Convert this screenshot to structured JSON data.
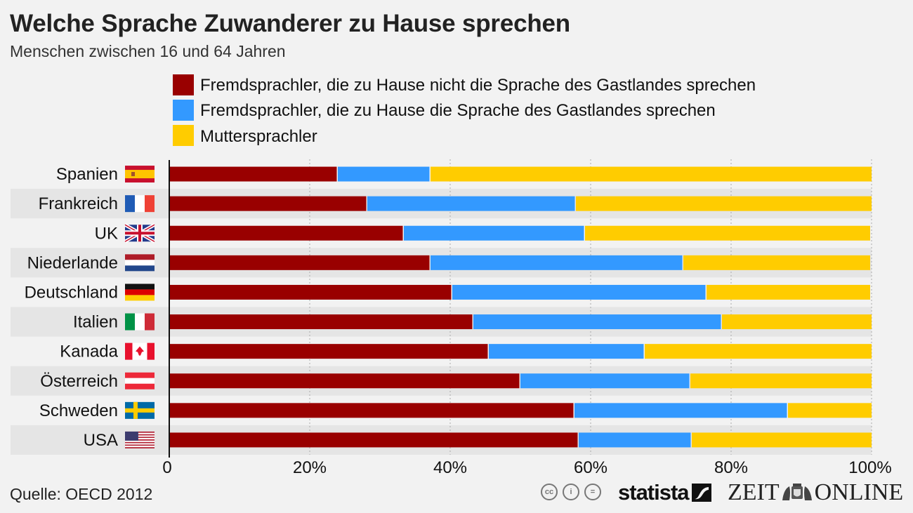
{
  "header": {
    "title": "Welche Sprache Zuwanderer zu Hause sprechen",
    "subtitle": "Menschen zwischen 16 und 64 Jahren"
  },
  "footer": {
    "source": "Quelle: OECD 2012",
    "license_icons": [
      "cc-icon",
      "attribution-icon",
      "no-derivatives-icon"
    ],
    "license_labels": [
      "cc",
      "i",
      "="
    ],
    "statista": "statista",
    "zeit_left": "ZEIT",
    "zeit_right": "ONLINE"
  },
  "chart_data": {
    "type": "bar",
    "orientation": "horizontal",
    "stacked": true,
    "title": "Welche Sprache Zuwanderer zu Hause sprechen",
    "subtitle": "Menschen zwischen 16 und 64 Jahren",
    "xlabel": "",
    "ylabel": "",
    "xlim": [
      0,
      100
    ],
    "x_ticks": [
      0,
      20,
      40,
      60,
      80,
      100
    ],
    "x_tick_labels": [
      "0",
      "20%",
      "40%",
      "60%",
      "80%",
      "100%"
    ],
    "grid": "vertical dotted",
    "legend_position": "top",
    "categories": [
      "Spanien",
      "Frankreich",
      "UK",
      "Niederlande",
      "Deutschland",
      "Italien",
      "Kanada",
      "Österreich",
      "Schweden",
      "USA"
    ],
    "flags": [
      "es-flag-icon",
      "fr-flag-icon",
      "uk-flag-icon",
      "nl-flag-icon",
      "de-flag-icon",
      "it-flag-icon",
      "ca-flag-icon",
      "at-flag-icon",
      "se-flag-icon",
      "us-flag-icon"
    ],
    "series": [
      {
        "name": "Fremdsprachler, die zu Hause nicht die Sprache des Gastlandes sprechen",
        "color": "#990000",
        "values": [
          24.0,
          28.2,
          33.4,
          37.2,
          40.3,
          43.3,
          45.5,
          50.0,
          57.7,
          58.3
        ]
      },
      {
        "name": "Fremdsprachler, die zu Hause die Sprache des Gastlandes sprechen",
        "color": "#3399ff",
        "values": [
          13.2,
          29.7,
          25.8,
          36.0,
          36.2,
          35.4,
          22.2,
          24.2,
          30.4,
          16.1
        ]
      },
      {
        "name": "Muttersprachler",
        "color": "#ffcc00",
        "values": [
          62.8,
          42.1,
          40.6,
          26.6,
          23.3,
          21.3,
          32.3,
          25.8,
          11.9,
          25.6
        ]
      }
    ],
    "source": "Quelle: OECD 2012"
  }
}
